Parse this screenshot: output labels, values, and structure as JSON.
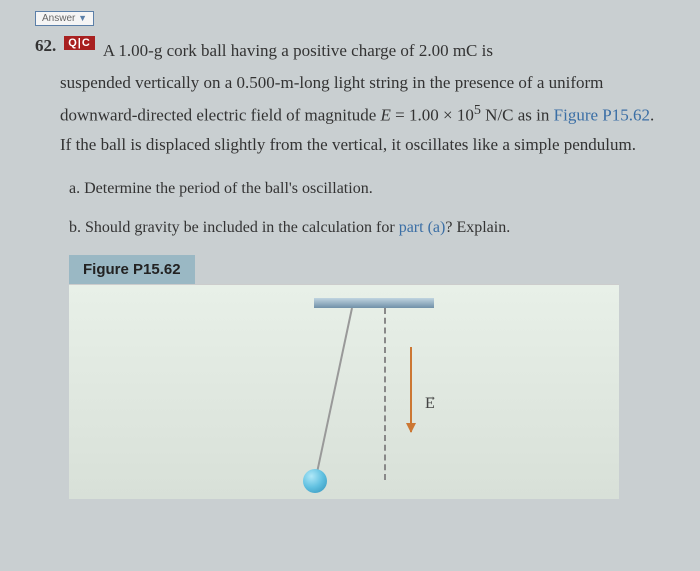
{
  "answer_tab": "Answer",
  "problem": {
    "number": "62.",
    "badge": "Q|C",
    "text_line1": "A 1.00-g cork ball having a positive charge of 2.00 mC is",
    "text_body": "suspended vertically on a 0.500-m-long light string in the presence of a uniform downward-directed electric field of magnitude ",
    "equation_var": "E",
    "equation_eq": " = 1.00 × 10",
    "equation_exp": "5",
    "equation_unit": " N/C",
    "text_body2": " as in ",
    "link_figure": "Figure P15.62",
    "text_body3": ". If the ball is displaced slightly from the vertical, it oscillates like a simple pendulum."
  },
  "parts": {
    "a": {
      "label": "a.",
      "text": "Determine the period of the ball's oscillation."
    },
    "b": {
      "label": "b.",
      "text1": "Should gravity be included in the calculation for ",
      "link": "part (a)",
      "text2": "? Explain."
    }
  },
  "figure": {
    "label": "Figure P15.62",
    "e_symbol": "E",
    "colors": {
      "page_bg": "#c9cfd1",
      "badge_bg": "#a82020",
      "link_color": "#3a6ea5",
      "figure_label_bg": "#9ab8c4",
      "arrow_color": "#cc7733",
      "ball_light": "#b0e8f8",
      "ball_dark": "#3090b8"
    }
  }
}
